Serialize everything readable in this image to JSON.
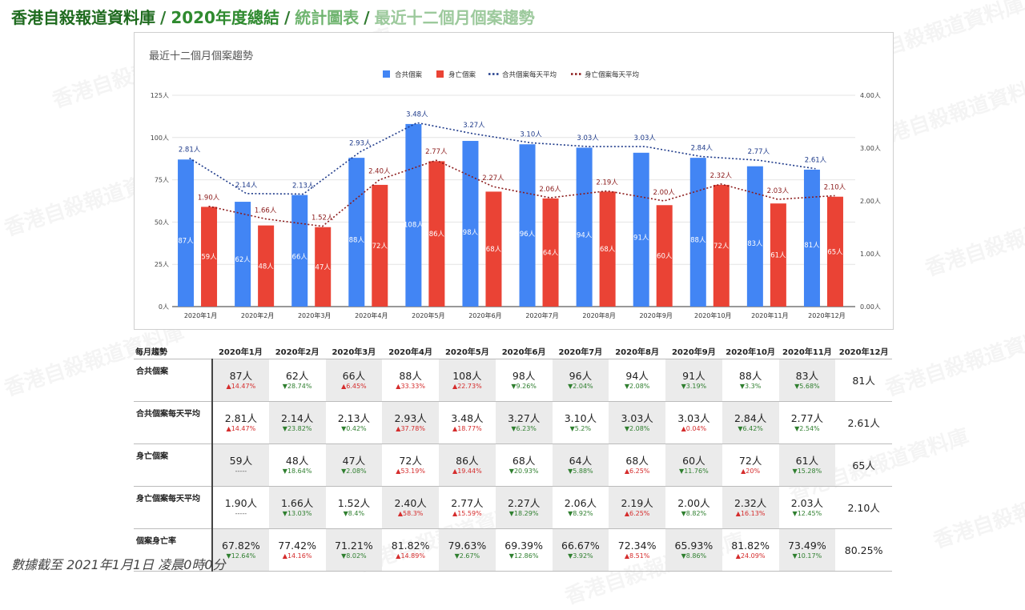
{
  "header": {
    "crumbs": [
      "香港自殺報道資料庫",
      "2020年度總結",
      "統計圖表",
      "最近十二個月個案趨勢"
    ],
    "separator": "/"
  },
  "watermark": "香港自殺報道資料庫",
  "chart_data": {
    "type": "bar",
    "title": "最近十二個月個案趨勢",
    "categories": [
      "2020年1月",
      "2020年2月",
      "2020年3月",
      "2020年4月",
      "2020年5月",
      "2020年6月",
      "2020年7月",
      "2020年8月",
      "2020年9月",
      "2020年10月",
      "2020年11月",
      "2020年12月"
    ],
    "series": [
      {
        "name": "合共個案",
        "kind": "bar",
        "axis": "left",
        "color": "#4285f4",
        "values": [
          87,
          62,
          66,
          88,
          108,
          98,
          96,
          94,
          91,
          88,
          83,
          81
        ],
        "labels": [
          "87人",
          "62人",
          "66人",
          "88人",
          "108人",
          "98人",
          "96人",
          "94人",
          "91人",
          "88人",
          "83人",
          "81人"
        ]
      },
      {
        "name": "身亡個案",
        "kind": "bar",
        "axis": "left",
        "color": "#ea4335",
        "values": [
          59,
          48,
          47,
          72,
          86,
          68,
          64,
          68,
          60,
          72,
          61,
          65
        ],
        "labels": [
          "59人",
          "48人",
          "47人",
          "72人",
          "86人",
          "68人",
          "64人",
          "68人",
          "60人",
          "72人",
          "61人",
          "65人"
        ]
      },
      {
        "name": "合共個案每天平均",
        "kind": "line",
        "axis": "right",
        "color": "#1e3a8a",
        "values": [
          2.81,
          2.14,
          2.13,
          2.93,
          3.48,
          3.27,
          3.1,
          3.03,
          3.03,
          2.84,
          2.77,
          2.61
        ],
        "labels": [
          "2.81人",
          "2.14人",
          "2.13人",
          "2.93人",
          "3.48人",
          "3.27人",
          "3.10人",
          "3.03人",
          "3.03人",
          "2.84人",
          "2.77人",
          "2.61人"
        ]
      },
      {
        "name": "身亡個案每天平均",
        "kind": "line",
        "axis": "right",
        "color": "#8b1a1a",
        "values": [
          1.9,
          1.66,
          1.52,
          2.4,
          2.77,
          2.27,
          2.06,
          2.19,
          2.0,
          2.32,
          2.03,
          2.1
        ],
        "labels": [
          "1.90人",
          "1.66人",
          "1.52人",
          "2.40人",
          "2.77人",
          "2.27人",
          "2.06人",
          "2.19人",
          "2.00人",
          "2.32人",
          "2.03人",
          "2.10人"
        ]
      }
    ],
    "ylim": [
      0,
      125
    ],
    "y2lim": [
      0,
      4
    ],
    "yticks": [
      "0人",
      "25人",
      "50人",
      "75人",
      "100人",
      "125人"
    ],
    "y2ticks": [
      "0.00人",
      "1.00人",
      "2.00人",
      "3.00人",
      "4.00人"
    ],
    "legend": "top-center",
    "grid": true
  },
  "table": {
    "corner": "每月趨勢",
    "columns": [
      "2020年1月",
      "2020年2月",
      "2020年3月",
      "2020年4月",
      "2020年5月",
      "2020年6月",
      "2020年7月",
      "2020年8月",
      "2020年9月",
      "2020年10月",
      "2020年11月",
      "2020年12月"
    ],
    "rows": [
      {
        "label": "合共個案",
        "values": [
          "87人",
          "62人",
          "66人",
          "88人",
          "108人",
          "98人",
          "96人",
          "94人",
          "91人",
          "88人",
          "83人",
          "81人"
        ],
        "deltas": [
          "▲14.47%",
          "▼28.74%",
          "▲6.45%",
          "▲33.33%",
          "▲22.73%",
          "▼9.26%",
          "▼2.04%",
          "▼2.08%",
          "▼3.19%",
          "▼3.3%",
          "▼5.68%",
          ""
        ]
      },
      {
        "label": "合共個案每天平均",
        "values": [
          "2.81人",
          "2.14人",
          "2.13人",
          "2.93人",
          "3.48人",
          "3.27人",
          "3.10人",
          "3.03人",
          "3.03人",
          "2.84人",
          "2.77人",
          "2.61人"
        ],
        "deltas": [
          "▲14.47%",
          "▼23.82%",
          "▼0.42%",
          "▲37.78%",
          "▲18.77%",
          "▼6.23%",
          "▼5.2%",
          "▼2.08%",
          "▲0.04%",
          "▼6.42%",
          "▼2.54%",
          ""
        ]
      },
      {
        "label": "身亡個案",
        "values": [
          "59人",
          "48人",
          "47人",
          "72人",
          "86人",
          "68人",
          "64人",
          "68人",
          "60人",
          "72人",
          "61人",
          "65人"
        ],
        "deltas": [
          "-----",
          "▼18.64%",
          "▼2.08%",
          "▲53.19%",
          "▲19.44%",
          "▼20.93%",
          "▼5.88%",
          "▲6.25%",
          "▼11.76%",
          "▲20%",
          "▼15.28%",
          ""
        ]
      },
      {
        "label": "身亡個案每天平均",
        "values": [
          "1.90人",
          "1.66人",
          "1.52人",
          "2.40人",
          "2.77人",
          "2.27人",
          "2.06人",
          "2.19人",
          "2.00人",
          "2.32人",
          "2.03人",
          "2.10人"
        ],
        "deltas": [
          "-----",
          "▼13.03%",
          "▼8.4%",
          "▲58.3%",
          "▲15.59%",
          "▼18.29%",
          "▼8.92%",
          "▲6.25%",
          "▼8.82%",
          "▲16.13%",
          "▼12.45%",
          ""
        ]
      },
      {
        "label": "個案身亡率",
        "values": [
          "67.82%",
          "77.42%",
          "71.21%",
          "81.82%",
          "79.63%",
          "69.39%",
          "66.67%",
          "72.34%",
          "65.93%",
          "81.82%",
          "73.49%",
          "80.25%"
        ],
        "deltas": [
          "▼12.64%",
          "▲14.16%",
          "▼8.02%",
          "▲14.89%",
          "▼2.67%",
          "▼12.86%",
          "▼3.92%",
          "▲8.51%",
          "▼8.86%",
          "▲24.09%",
          "▼10.17%",
          ""
        ]
      }
    ]
  },
  "footer": "數據截至 2021年1月1日 凌晨0時0分"
}
